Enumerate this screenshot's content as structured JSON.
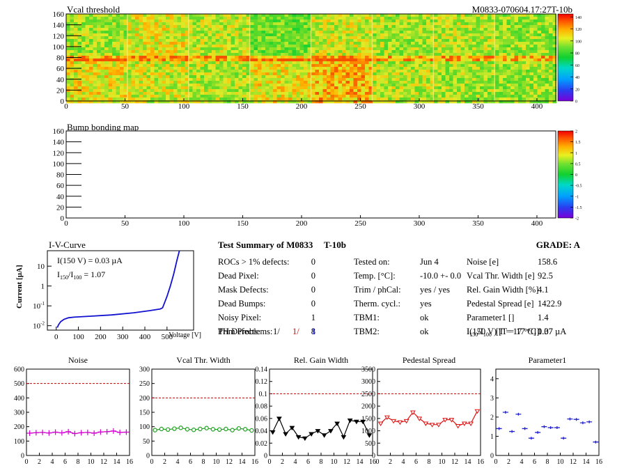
{
  "header": {
    "map1_title": "Vcal threshold",
    "module_id": "M0833-070604.17:27T-10b",
    "map2_title": "Bump bonding map"
  },
  "maps": {
    "x_ticks": [
      0,
      50,
      100,
      150,
      200,
      250,
      300,
      350,
      400
    ],
    "y_ticks": [
      0,
      20,
      40,
      60,
      80,
      100,
      120,
      140,
      160
    ],
    "x_range": [
      0,
      416
    ],
    "y_range": [
      0,
      160
    ],
    "map1_colorbar_ticks": [
      0,
      20,
      40,
      60,
      80,
      100,
      120,
      140
    ],
    "map1_colorbar_range": [
      0,
      145
    ],
    "map2_colorbar_ticks": [
      -2,
      -1.5,
      -1,
      -0.5,
      0,
      0.5,
      1,
      1.5,
      2
    ],
    "map2_colorbar_range": [
      -2,
      2
    ]
  },
  "iv": {
    "title": "I-V-Curve",
    "ylabel": "Current [µA]",
    "xlabel": "Voltage [V]",
    "note1": "I(150 V) = 0.03 µA",
    "note2_pre": "I",
    "note2_sub1": "150",
    "note2_mid": "/I",
    "note2_sub2": "100",
    "note2_val": "=  1.07",
    "x_ticks": [
      "0",
      "100",
      "200",
      "300",
      "400",
      "500"
    ],
    "y_ticks": [
      {
        "base": "10",
        "exp": "-2"
      },
      {
        "base": "10",
        "exp": "-1"
      },
      {
        "base": "1",
        "exp": ""
      },
      {
        "base": "10",
        "exp": ""
      }
    ]
  },
  "summary": {
    "title": "Test Summary of M0833",
    "tag": "T-10b",
    "grade_label": "GRADE:  A",
    "left_rows": [
      {
        "label": "ROCs > 1% defects:",
        "value": "0"
      },
      {
        "label": "Dead Pixel:",
        "value": "0"
      },
      {
        "label": "Mask Defects:",
        "value": "0"
      },
      {
        "label": "Dead Bumps:",
        "value": "0"
      },
      {
        "label": "Noisy Pixel:",
        "value": "1"
      },
      {
        "label": "Trim Problems:",
        "value": "8"
      }
    ],
    "ph_label": "PH Defects:",
    "ph_values": [
      "1/",
      "1/",
      "1"
    ],
    "ph_colors": [
      "#000000",
      "#d40000",
      "#1010c0"
    ],
    "mid_rows": [
      {
        "label": "Tested on:",
        "value": "Jun 4"
      },
      {
        "label": "Temp. [°C]:",
        "value": "-10.0 +- 0.0"
      },
      {
        "label": "Trim / phCal:",
        "value": "yes / yes"
      },
      {
        "label": "Therm. cycl.:",
        "value": "yes"
      },
      {
        "label": "TBM1:",
        "value": "ok"
      },
      {
        "label": "TBM2:",
        "value": "ok"
      }
    ],
    "right_rows": [
      {
        "label": "Noise [e]",
        "value": "158.6"
      },
      {
        "label": "Vcal Thr. Width [e]",
        "value": "92.5"
      },
      {
        "label": "Rel. Gain Width [%]",
        "value": "4.1"
      },
      {
        "label": "Pedestal Spread [e]",
        "value": "1422.9"
      },
      {
        "label": "Parameter1 []",
        "value": "1.4"
      },
      {
        "label": "I(150 V) [T = 17 °C]",
        "value": "0.37 µA"
      }
    ],
    "ratio_pre": "I",
    "ratio_sub1": "150",
    "ratio_mid": "/I",
    "ratio_sub2": "100",
    "ratio_tail": "[T = 17 °C]",
    "ratio_value": "1.07"
  },
  "chart_data": [
    {
      "type": "line",
      "title": "Noise",
      "color": "#d000d0",
      "marker": "cross",
      "x": [
        0,
        1,
        2,
        3,
        4,
        5,
        6,
        7,
        8,
        9,
        10,
        11,
        12,
        13,
        14,
        15
      ],
      "values": [
        155,
        158,
        160,
        156,
        162,
        157,
        165,
        152,
        158,
        160,
        155,
        163,
        165,
        170,
        160,
        162
      ],
      "ylim": [
        0,
        600
      ],
      "yticks": [
        0,
        100,
        200,
        300,
        400,
        500,
        600
      ],
      "ref_line": 500
    },
    {
      "type": "line",
      "title": "Vcal Thr. Width",
      "color": "#20a020",
      "marker": "circle",
      "x": [
        0,
        1,
        2,
        3,
        4,
        5,
        6,
        7,
        8,
        9,
        10,
        11,
        12,
        13,
        14,
        15
      ],
      "values": [
        88,
        92,
        90,
        93,
        96,
        91,
        89,
        92,
        95,
        91,
        90,
        92,
        88,
        94,
        91,
        87
      ],
      "ylim": [
        0,
        300
      ],
      "yticks": [
        0,
        50,
        100,
        150,
        200,
        250,
        300
      ],
      "ref_line": 200
    },
    {
      "type": "line",
      "title": "Rel. Gain Width",
      "color": "#000000",
      "marker": "triangle",
      "x": [
        0,
        1,
        2,
        3,
        4,
        5,
        6,
        7,
        8,
        9,
        10,
        11,
        12,
        13,
        14,
        15
      ],
      "values": [
        0.038,
        0.06,
        0.035,
        0.045,
        0.03,
        0.028,
        0.035,
        0.04,
        0.033,
        0.04,
        0.052,
        0.03,
        0.057,
        0.055,
        0.055,
        0.033
      ],
      "ylim": [
        0,
        0.14
      ],
      "yticks": [
        0,
        0.02,
        0.04,
        0.06,
        0.08,
        0.1,
        0.12,
        0.14
      ],
      "ref_line": 0.1
    },
    {
      "type": "line",
      "title": "Pedestal Spread",
      "color": "#e01010",
      "marker": "triangle",
      "x": [
        0,
        1,
        2,
        3,
        4,
        5,
        6,
        7,
        8,
        9,
        10,
        11,
        12,
        13,
        14,
        15
      ],
      "values": [
        1300,
        1550,
        1400,
        1350,
        1400,
        1750,
        1500,
        1300,
        1250,
        1250,
        1450,
        1450,
        1200,
        1300,
        1300,
        1800
      ],
      "ylim": [
        0,
        3500
      ],
      "yticks": [
        0,
        500,
        1000,
        1500,
        2000,
        2500,
        3000,
        3500
      ],
      "ref_line": 2500
    },
    {
      "type": "scatter",
      "title": "Parameter1",
      "color": "#2020d0",
      "marker": "dash",
      "x": [
        0,
        1,
        2,
        3,
        4,
        5,
        6,
        7,
        8,
        9,
        10,
        11,
        12,
        13,
        14,
        15
      ],
      "values": [
        1.4,
        2.25,
        1.25,
        2.15,
        1.4,
        0.9,
        1.2,
        1.5,
        1.45,
        1.45,
        0.9,
        1.9,
        1.88,
        1.7,
        1.75,
        0.7
      ],
      "ylim": [
        0,
        4.5
      ],
      "yticks": [
        0,
        1,
        2,
        3,
        4
      ],
      "ref_line": null
    }
  ],
  "minis_xticks": [
    0,
    2,
    4,
    6,
    8,
    10,
    12,
    14,
    16
  ]
}
